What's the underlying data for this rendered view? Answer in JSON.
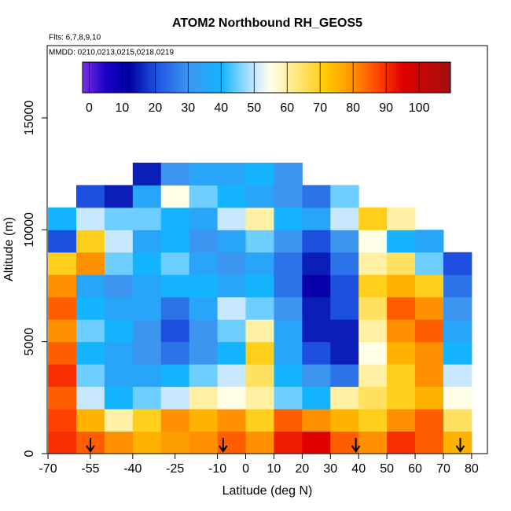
{
  "chart_data": {
    "type": "heatmap",
    "title": "ATOM2 Northbound RH_GEOS5",
    "annotations": [
      "Flts: 6,7,8,9,10",
      "MMDD: 0210,0213,0215,0218,0219"
    ],
    "xlabel": "Latitude (deg N)",
    "ylabel": "Altitude (m)",
    "xlim": [
      -70.3,
      85.6
    ],
    "ylim": [
      0,
      18230
    ],
    "xticks": [
      -70,
      -55,
      -40,
      -25,
      -10,
      0,
      10,
      20,
      30,
      40,
      50,
      60,
      70,
      80
    ],
    "yticks": [
      0,
      5000,
      10000,
      15000
    ],
    "x_edges": [
      -70,
      -60,
      -50,
      -40,
      -30,
      -20,
      -10,
      0,
      10,
      20,
      30,
      40,
      50,
      60,
      70,
      80
    ],
    "y_edges": [
      0,
      1000,
      2000,
      3000,
      4000,
      5000,
      6000,
      7000,
      8000,
      9000,
      10000,
      11000,
      12000,
      13000
    ],
    "values": [
      [
        90,
        85,
        80,
        75,
        78,
        80,
        85,
        80,
        92,
        95,
        85,
        80,
        90,
        85,
        75
      ],
      [
        88,
        75,
        60,
        70,
        80,
        75,
        80,
        70,
        85,
        80,
        75,
        70,
        80,
        85,
        65
      ],
      [
        85,
        50,
        40,
        45,
        50,
        60,
        55,
        60,
        45,
        40,
        60,
        65,
        70,
        75,
        55
      ],
      [
        90,
        45,
        35,
        35,
        40,
        45,
        50,
        65,
        40,
        30,
        25,
        60,
        70,
        80,
        50
      ],
      [
        85,
        40,
        35,
        30,
        25,
        30,
        40,
        70,
        35,
        20,
        15,
        55,
        75,
        80,
        40
      ],
      [
        80,
        45,
        40,
        30,
        20,
        30,
        45,
        60,
        35,
        15,
        15,
        60,
        80,
        85,
        35
      ],
      [
        85,
        40,
        35,
        35,
        25,
        35,
        50,
        45,
        30,
        15,
        20,
        65,
        85,
        80,
        30
      ],
      [
        80,
        35,
        30,
        35,
        40,
        40,
        35,
        40,
        25,
        10,
        20,
        70,
        75,
        70,
        25
      ],
      [
        70,
        80,
        45,
        40,
        45,
        35,
        30,
        35,
        25,
        15,
        25,
        60,
        65,
        45,
        20
      ],
      [
        20,
        70,
        50,
        35,
        40,
        30,
        35,
        45,
        30,
        20,
        30,
        55,
        40,
        35,
        null
      ],
      [
        40,
        50,
        45,
        45,
        40,
        35,
        50,
        60,
        40,
        35,
        50,
        70,
        60,
        null,
        null
      ],
      [
        null,
        20,
        15,
        35,
        55,
        45,
        40,
        35,
        30,
        25,
        45,
        null,
        null,
        null,
        null
      ],
      [
        null,
        null,
        null,
        15,
        30,
        35,
        35,
        40,
        30,
        null,
        null,
        null,
        null,
        null,
        null
      ]
    ],
    "arrows": [
      -55,
      -8,
      39,
      76
    ],
    "clim": [
      -2,
      109.5
    ],
    "cticks": [
      0,
      10,
      20,
      30,
      40,
      50,
      60,
      70,
      80,
      90,
      100
    ],
    "colorscale": [
      [
        -2,
        "#7b2fe0"
      ],
      [
        5,
        "#1a00c8"
      ],
      [
        12,
        "#0000a0"
      ],
      [
        20,
        "#1e50e0"
      ],
      [
        30,
        "#3c96f0"
      ],
      [
        40,
        "#14b4ff"
      ],
      [
        50,
        "#c8e8ff"
      ],
      [
        55,
        "#ffffe8"
      ],
      [
        65,
        "#ffe060"
      ],
      [
        72,
        "#ffc800"
      ],
      [
        80,
        "#ff9000"
      ],
      [
        88,
        "#ff4000"
      ],
      [
        95,
        "#e00000"
      ],
      [
        109.5,
        "#a01010"
      ]
    ]
  }
}
